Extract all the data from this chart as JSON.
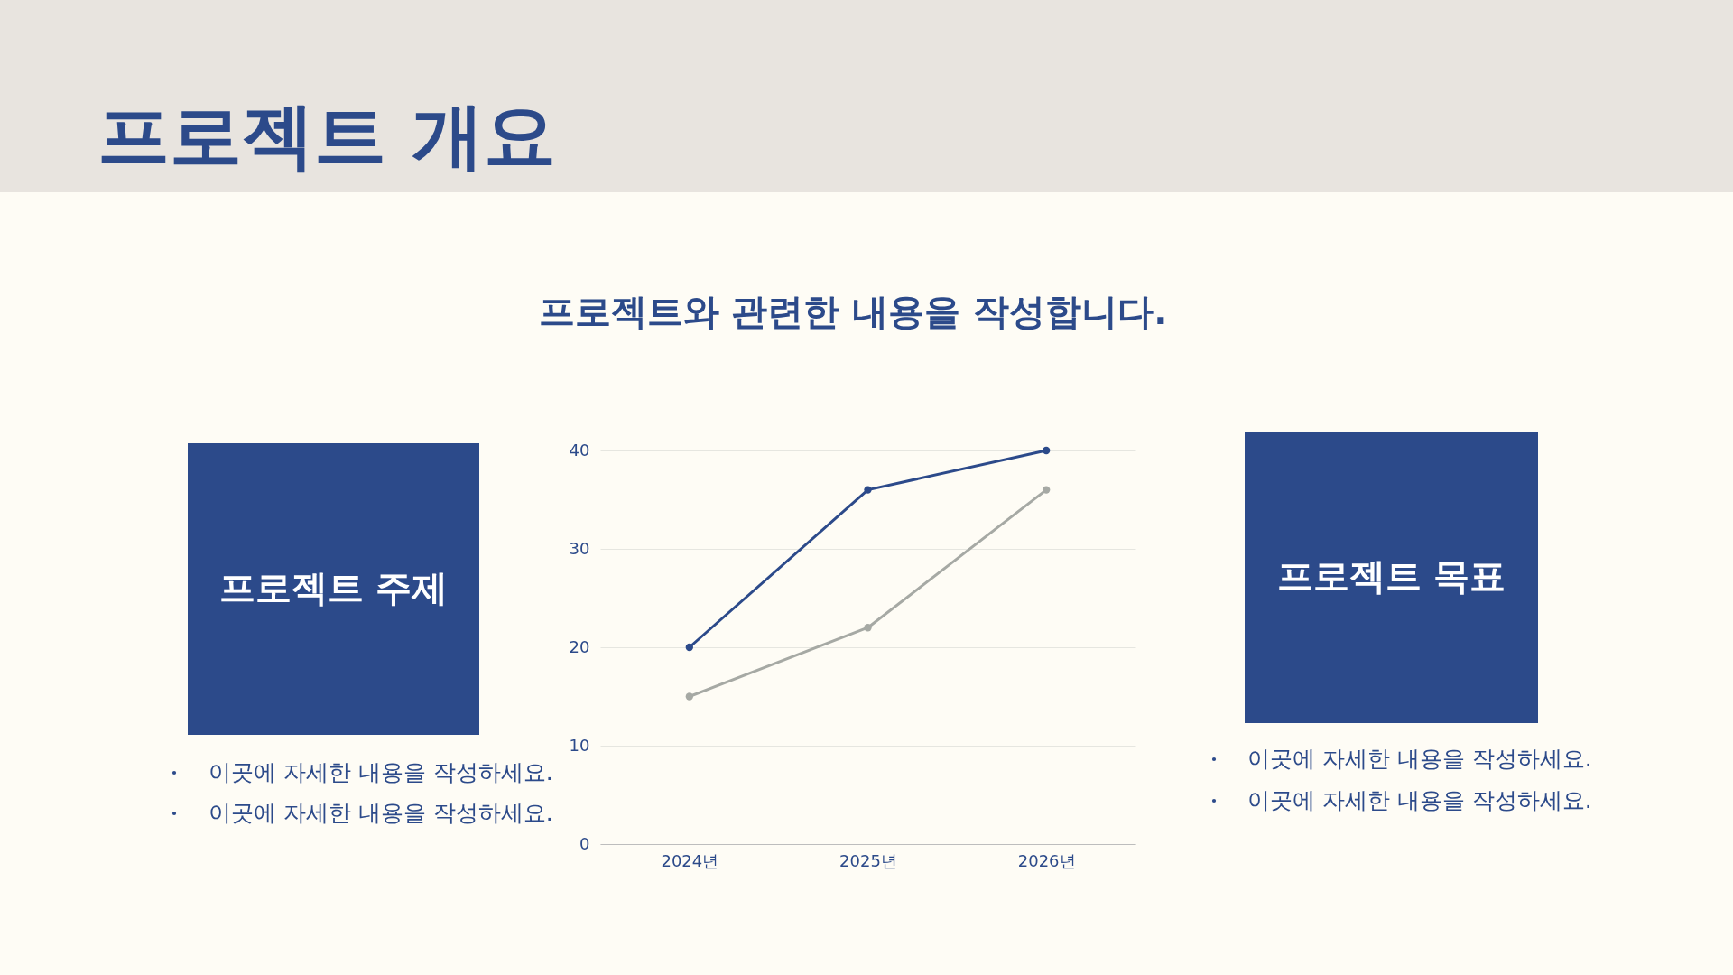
{
  "chart_data": [
    {
      "type": "other",
      "title": "프로젝트 개요",
      "subtitle": "프로젝트와 관련한 내용을 작성합니다."
    },
    {
      "type": "other",
      "title": "프로젝트 주제",
      "annotations": [
        "이곳에 자세한 내용을 작성하세요.",
        "이곳에 자세한 내용을 작성하세요."
      ]
    },
    {
      "type": "line",
      "categories": [
        "2024년",
        "2025년",
        "2026년"
      ],
      "series": [
        {
          "color": "#2c4a8a",
          "values": [
            20,
            36,
            40
          ]
        },
        {
          "color": "#a6a9a4",
          "values": [
            15,
            22,
            36
          ]
        }
      ],
      "ylim": [
        0,
        40
      ],
      "yticks": [
        0,
        10,
        20,
        30,
        40
      ],
      "grid": "y",
      "marker": "circle",
      "line_style": "solid"
    },
    {
      "type": "other",
      "title": "프로젝트 목표",
      "annotations": [
        "이곳에 자세한 내용을 작성하세요.",
        "이곳에 자세한 내용을 작성하세요."
      ]
    }
  ]
}
